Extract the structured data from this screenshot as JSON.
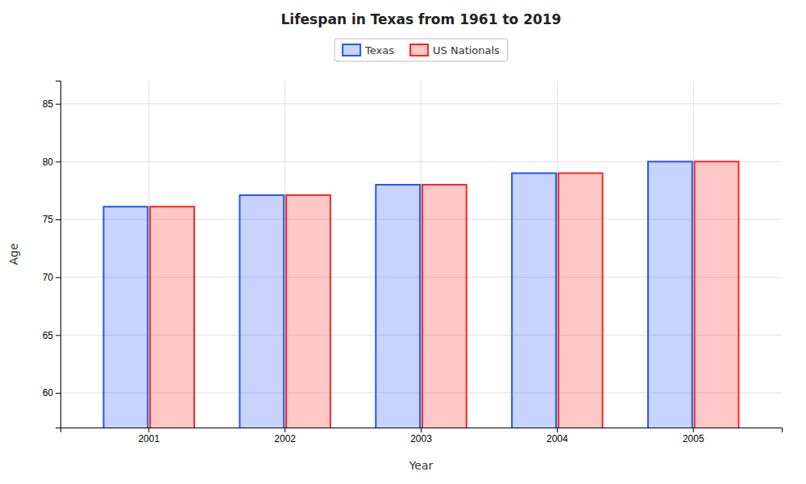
{
  "chart_data": {
    "type": "bar",
    "title": "Lifespan in Texas from 1961 to 2019",
    "xlabel": "Year",
    "ylabel": "Age",
    "categories": [
      "2001",
      "2002",
      "2003",
      "2004",
      "2005"
    ],
    "series": [
      {
        "name": "Texas",
        "color": "#2255ff",
        "values": [
          76.1,
          77.1,
          78.0,
          79.0,
          80.0
        ]
      },
      {
        "name": "US Nationals",
        "color": "#ff2222",
        "values": [
          76.1,
          77.1,
          78.0,
          79.0,
          80.0
        ]
      }
    ],
    "ylim": [
      57,
      87
    ],
    "yticks": [
      60,
      65,
      70,
      75,
      80,
      85
    ],
    "grid": true,
    "legend": "top"
  }
}
